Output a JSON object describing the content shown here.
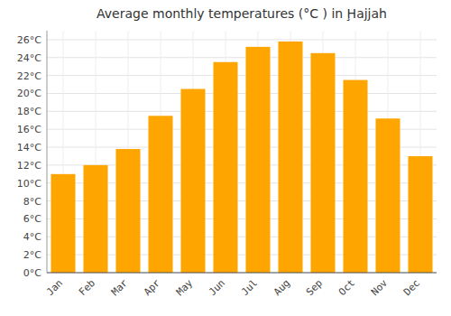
{
  "chart_data": {
    "type": "bar",
    "title": "Average monthly temperatures (°C ) in Ḩajjah",
    "categories": [
      "Jan",
      "Feb",
      "Mar",
      "Apr",
      "May",
      "Jun",
      "Jul",
      "Aug",
      "Sep",
      "Oct",
      "Nov",
      "Dec"
    ],
    "values": [
      11.0,
      12.0,
      13.8,
      17.5,
      20.5,
      23.5,
      25.2,
      25.8,
      24.5,
      21.5,
      17.2,
      13.0
    ],
    "color": "#FFA500",
    "ylim": [
      0,
      27
    ],
    "yticks": [
      {
        "value": 0,
        "label": "0°C"
      },
      {
        "value": 2,
        "label": "2°C"
      },
      {
        "value": 4,
        "label": "4°C"
      },
      {
        "value": 6,
        "label": "6°C"
      },
      {
        "value": 8,
        "label": "8°C"
      },
      {
        "value": 10,
        "label": "10°C"
      },
      {
        "value": 12,
        "label": "12°C"
      },
      {
        "value": 14,
        "label": "14°C"
      },
      {
        "value": 16,
        "label": "16°C"
      },
      {
        "value": 18,
        "label": "18°C"
      },
      {
        "value": 20,
        "label": "20°C"
      },
      {
        "value": 22,
        "label": "22°C"
      },
      {
        "value": 24,
        "label": "24°C"
      },
      {
        "value": 26,
        "label": "26°C"
      }
    ],
    "grid": true
  }
}
